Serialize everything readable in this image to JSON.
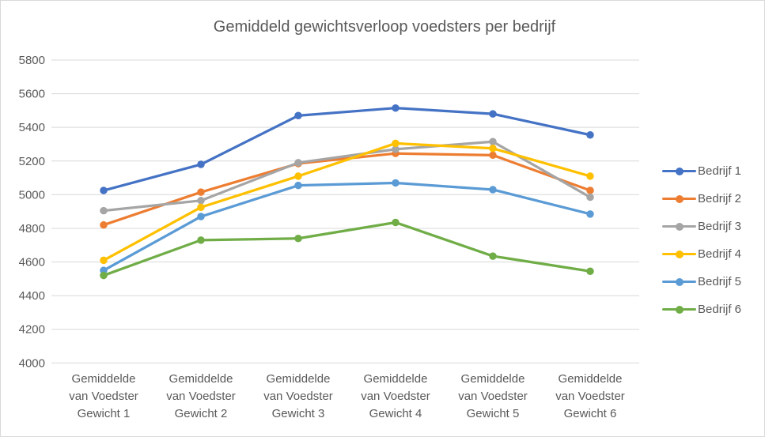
{
  "chart": {
    "title": "Gemiddeld gewichtsverloop voedsters per bedrijf"
  },
  "chart_data": {
    "type": "line",
    "title": "Gemiddeld gewichtsverloop voedsters per bedrijf",
    "categories": [
      "Gemiddelde van Voedster Gewicht 1",
      "Gemiddelde van Voedster Gewicht 2",
      "Gemiddelde van Voedster Gewicht 3",
      "Gemiddelde van Voedster Gewicht 4",
      "Gemiddelde van Voedster Gewicht 5",
      "Gemiddelde van Voedster Gewicht 6"
    ],
    "series": [
      {
        "name": "Bedrijf 1",
        "color": "#4472C4",
        "values": [
          5025,
          5180,
          5470,
          5515,
          5480,
          5355
        ]
      },
      {
        "name": "Bedrijf 2",
        "color": "#ED7D31",
        "values": [
          4820,
          5015,
          5185,
          5245,
          5235,
          5025
        ]
      },
      {
        "name": "Bedrijf 3",
        "color": "#A5A5A5",
        "values": [
          4905,
          4965,
          5190,
          5270,
          5315,
          4985
        ]
      },
      {
        "name": "Bedrijf 4",
        "color": "#FFC000",
        "values": [
          4610,
          4925,
          5110,
          5305,
          5275,
          5110
        ]
      },
      {
        "name": "Bedrijf 5",
        "color": "#5B9BD5",
        "values": [
          4550,
          4870,
          5055,
          5070,
          5030,
          4885
        ]
      },
      {
        "name": "Bedrijf 6",
        "color": "#70AD47",
        "values": [
          4520,
          4730,
          4740,
          4835,
          4635,
          4545
        ]
      }
    ],
    "ylim": [
      4000,
      5800
    ],
    "yticks": [
      5800,
      5600,
      5400,
      5200,
      5000,
      4800,
      4600,
      4400,
      4200,
      4000
    ],
    "grid": "horizontal",
    "legend_position": "right",
    "marker": "circle",
    "colors": {
      "text": "#595959",
      "gridline": "#D9D9D9",
      "border": "#D9D9D9",
      "background": "#FFFFFF"
    }
  }
}
